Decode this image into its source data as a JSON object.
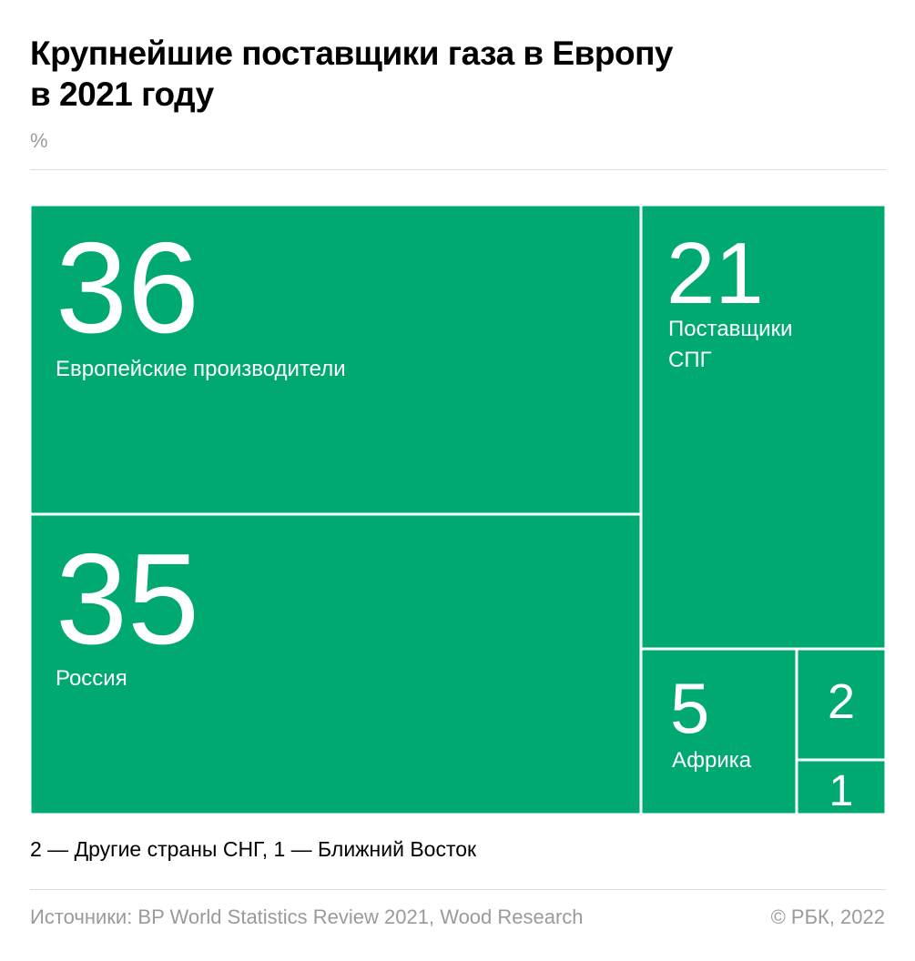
{
  "header": {
    "title_line1": "Крупнейшие поставщики газа в Европу",
    "title_line2": "в 2021 году",
    "unit": "%"
  },
  "chart_data": {
    "type": "treemap",
    "color": "#00a971",
    "items": [
      {
        "value": 36,
        "label": "Европейские производители"
      },
      {
        "value": 35,
        "label": "Россия"
      },
      {
        "value": 21,
        "label": "Поставщики СПГ"
      },
      {
        "value": 5,
        "label": "Африка"
      },
      {
        "value": 2,
        "label": ""
      },
      {
        "value": 1,
        "label": ""
      }
    ]
  },
  "footer": {
    "note": "2 — Другие страны СНГ, 1 — Ближний Восток",
    "source": "Источники: BP World Statistics Review 2021, Wood Research",
    "copyright": "© РБК, 2022"
  }
}
